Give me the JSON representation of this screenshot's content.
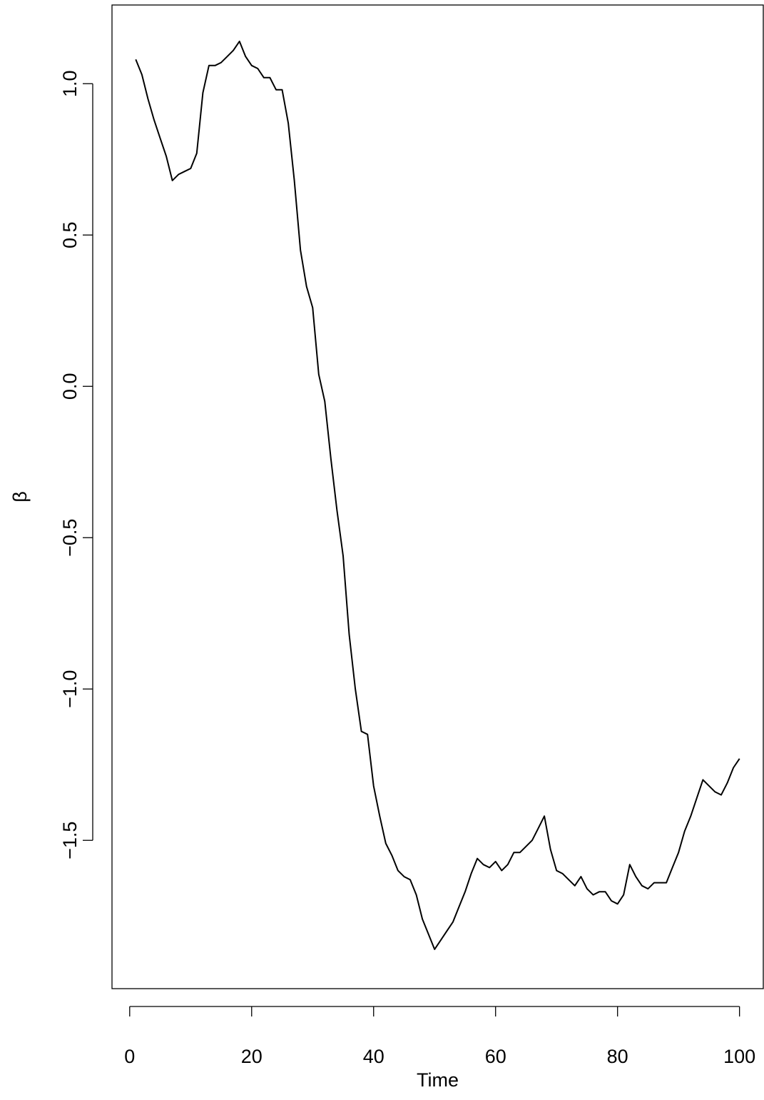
{
  "chart_data": {
    "type": "line",
    "title": "",
    "xlabel": "Time",
    "ylabel": "β",
    "xlim": [
      -2.9,
      103.9
    ],
    "ylim": [
      -1.99,
      1.26
    ],
    "x_ticks": [
      0,
      20,
      40,
      60,
      80,
      100
    ],
    "x_tick_labels": [
      "0",
      "20",
      "40",
      "60",
      "80",
      "100"
    ],
    "y_ticks": [
      -1.5,
      -1.0,
      -0.5,
      0.0,
      0.5,
      1.0
    ],
    "y_tick_labels": [
      "−1.5",
      "−1.0",
      "−0.5",
      "0.0",
      "0.5",
      "1.0"
    ],
    "grid": false,
    "series": [
      {
        "x": [
          1,
          2,
          3,
          4,
          5,
          6,
          7,
          8,
          9,
          10,
          11,
          12,
          13,
          14,
          15,
          16,
          17,
          18,
          19,
          20,
          21,
          22,
          23,
          24,
          25,
          26,
          27,
          28,
          29,
          30,
          31,
          32,
          33,
          34,
          35,
          36,
          37,
          38,
          39,
          40,
          41,
          42,
          43,
          44,
          45,
          46,
          47,
          48,
          49,
          50,
          51,
          52,
          53,
          54,
          55,
          56,
          57,
          58,
          59,
          60,
          61,
          62,
          63,
          64,
          65,
          66,
          67,
          68,
          69,
          70,
          71,
          72,
          73,
          74,
          75,
          76,
          77,
          78,
          79,
          80,
          81,
          82,
          83,
          84,
          85,
          86,
          87,
          88,
          89,
          90,
          91,
          92,
          93,
          94,
          95,
          96,
          97,
          98,
          99,
          100
        ],
        "values": [
          1.08,
          1.03,
          0.95,
          0.88,
          0.82,
          0.76,
          0.68,
          0.7,
          0.71,
          0.72,
          0.77,
          0.97,
          1.06,
          1.06,
          1.07,
          1.09,
          1.11,
          1.14,
          1.09,
          1.06,
          1.05,
          1.02,
          1.02,
          0.98,
          0.98,
          0.87,
          0.68,
          0.45,
          0.33,
          0.26,
          0.04,
          -0.05,
          -0.24,
          -0.41,
          -0.56,
          -0.82,
          -1.0,
          -1.14,
          -1.15,
          -1.32,
          -1.42,
          -1.51,
          -1.55,
          -1.6,
          -1.62,
          -1.63,
          -1.68,
          -1.76,
          -1.81,
          -1.86,
          -1.83,
          -1.8,
          -1.77,
          -1.72,
          -1.67,
          -1.61,
          -1.56,
          -1.58,
          -1.59,
          -1.57,
          -1.6,
          -1.58,
          -1.54,
          -1.54,
          -1.52,
          -1.5,
          -1.46,
          -1.42,
          -1.53,
          -1.6,
          -1.61,
          -1.63,
          -1.65,
          -1.62,
          -1.66,
          -1.68,
          -1.67,
          -1.67,
          -1.7,
          -1.71,
          -1.68,
          -1.58,
          -1.62,
          -1.65,
          -1.66,
          -1.64,
          -1.64,
          -1.64,
          -1.59,
          -1.54,
          -1.47,
          -1.42,
          -1.36,
          -1.3,
          -1.32,
          -1.34,
          -1.35,
          -1.31,
          -1.26,
          -1.23
        ]
      }
    ]
  }
}
